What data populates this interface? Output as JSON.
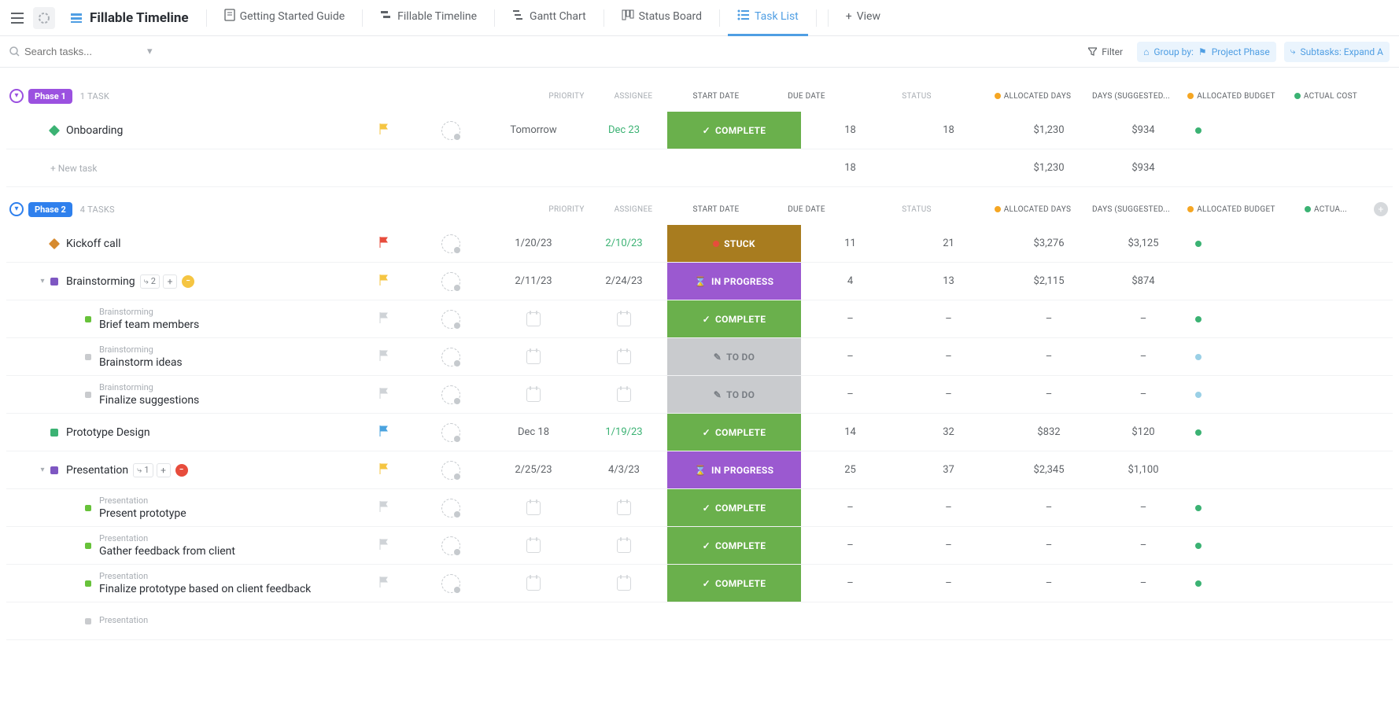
{
  "colors": {
    "accent": "#4f9ee3",
    "phase1_badge": "#9b51e0",
    "phase2_badge": "#2f80ed",
    "status_complete": "#6ab04c",
    "status_stuck": "#a87c1f",
    "status_progress": "#9b59d0",
    "status_todo": "#c9cbce",
    "flag_yellow": "#f5c542",
    "flag_red": "#e74c3c",
    "flag_blue": "#4aa3df",
    "flag_grey": "#cfd3d7",
    "due_green": "#3bb273",
    "marker_green": "#3bb273",
    "marker_orange": "#d68a2e",
    "marker_purple": "#7e57c2",
    "marker_sub_green": "#67c23a",
    "marker_sub_grey": "#c9cbce",
    "minus_circle": "#f5c542",
    "stop_circle": "#e74c3c"
  },
  "topbar": {
    "title": "Fillable Timeline",
    "tabs": [
      {
        "label": "Getting Started Guide",
        "icon": "doc"
      },
      {
        "label": "Fillable Timeline",
        "icon": "timeline"
      },
      {
        "label": "Gantt Chart",
        "icon": "gantt"
      },
      {
        "label": "Status Board",
        "icon": "board"
      },
      {
        "label": "Task List",
        "icon": "list",
        "active": true
      }
    ],
    "add_view_label": "View"
  },
  "toolbar": {
    "search_placeholder": "Search tasks...",
    "filter_label": "Filter",
    "group_by_prefix": "Group by:",
    "group_by_value": "Project Phase",
    "subtasks_label": "Subtasks: Expand A"
  },
  "columns": {
    "priority": "PRIORITY",
    "assignee": "ASSIGNEE",
    "start": "START DATE",
    "due": "DUE DATE",
    "status": "STATUS",
    "allocated_days": "ALLOCATED DAYS",
    "days_suggested": "DAYS (SUGGESTED...",
    "allocated_budget": "ALLOCATED BUDGET",
    "actual_cost": "ACTUAL COST",
    "actual_cost_short": "ACTUA..."
  },
  "status_labels": {
    "complete": "COMPLETE",
    "stuck": "STUCK",
    "progress": "IN PROGRESS",
    "todo": "TO DO"
  },
  "new_task_label": "+ New task",
  "groups": [
    {
      "id": "phase1",
      "badge": "Phase 1",
      "badge_color": "#9b51e0",
      "collapse_color": "purple",
      "count_label": "1 TASK",
      "tasks": [
        {
          "name": "Onboarding",
          "marker_color": "#3bb273",
          "marker_shape": "diamond",
          "flag_color": "#f5c542",
          "start": "Tomorrow",
          "due": "Dec 23",
          "due_color": "#3bb273",
          "status": "complete",
          "allocated_days": "18",
          "days_suggested": "18",
          "allocated_budget": "$1,230",
          "actual_cost": "$934",
          "end_dot": "#3bb273"
        }
      ],
      "footer": {
        "allocated_days": "18",
        "allocated_budget": "$1,230",
        "actual_cost": "$934"
      }
    },
    {
      "id": "phase2",
      "badge": "Phase 2",
      "badge_color": "#2f80ed",
      "collapse_color": "blue",
      "count_label": "4 TASKS",
      "tasks": [
        {
          "name": "Kickoff call",
          "marker_color": "#d68a2e",
          "marker_shape": "diamond",
          "flag_color": "#e74c3c",
          "start": "1/20/23",
          "due": "2/10/23",
          "due_color": "#3bb273",
          "status": "stuck",
          "allocated_days": "11",
          "days_suggested": "21",
          "allocated_budget": "$3,276",
          "actual_cost": "$3,125",
          "end_dot": "#3bb273"
        },
        {
          "name": "Brainstorming",
          "marker_color": "#7e57c2",
          "marker_shape": "square",
          "expandable": true,
          "subtask_badge": "2",
          "trailing_circle": {
            "color": "#f5c542",
            "glyph": "−"
          },
          "flag_color": "#f5c542",
          "start": "2/11/23",
          "due": "2/24/23",
          "status": "progress",
          "allocated_days": "4",
          "days_suggested": "13",
          "allocated_budget": "$2,115",
          "actual_cost": "$874",
          "subtasks": [
            {
              "parent": "Brainstorming",
              "name": "Brief team members",
              "marker_color": "#67c23a",
              "status": "complete",
              "end_dot": "#3bb273"
            },
            {
              "parent": "Brainstorming",
              "name": "Brainstorm ideas",
              "marker_color": "#c9cbce",
              "status": "todo",
              "end_dot": "#9ad0e6"
            },
            {
              "parent": "Brainstorming",
              "name": "Finalize suggestions",
              "marker_color": "#c9cbce",
              "status": "todo",
              "end_dot": "#9ad0e6"
            }
          ]
        },
        {
          "name": "Prototype Design",
          "marker_color": "#3bb273",
          "marker_shape": "square",
          "flag_color": "#4aa3df",
          "start": "Dec 18",
          "due": "1/19/23",
          "due_color": "#3bb273",
          "status": "complete",
          "allocated_days": "14",
          "days_suggested": "32",
          "allocated_budget": "$832",
          "actual_cost": "$120",
          "end_dot": "#3bb273"
        },
        {
          "name": "Presentation",
          "marker_color": "#7e57c2",
          "marker_shape": "square",
          "expandable": true,
          "subtask_badge": "1",
          "trailing_circle": {
            "color": "#e74c3c",
            "glyph": "−"
          },
          "flag_color": "#f5c542",
          "start": "2/25/23",
          "due": "4/3/23",
          "status": "progress",
          "allocated_days": "25",
          "days_suggested": "37",
          "allocated_budget": "$2,345",
          "actual_cost": "$1,100",
          "subtasks": [
            {
              "parent": "Presentation",
              "name": "Present prototype",
              "marker_color": "#67c23a",
              "status": "complete",
              "end_dot": "#3bb273"
            },
            {
              "parent": "Presentation",
              "name": "Gather feedback from client",
              "marker_color": "#67c23a",
              "status": "complete",
              "end_dot": "#3bb273"
            },
            {
              "parent": "Presentation",
              "name": "Finalize prototype based on client feedback",
              "marker_color": "#67c23a",
              "status": "complete",
              "end_dot": "#3bb273"
            },
            {
              "parent": "Presentation",
              "name": "",
              "marker_color": "#c9cbce",
              "status": "",
              "truncated": true
            }
          ]
        }
      ]
    }
  ]
}
